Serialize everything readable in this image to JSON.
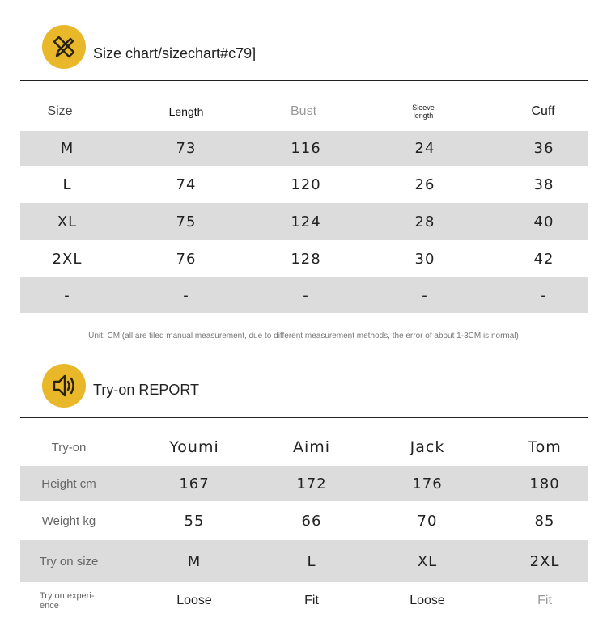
{
  "size_chart": {
    "icon": "pencil-ruler-icon",
    "title": "Size chart/sizechart#c79]",
    "headers": [
      "Size",
      "Length",
      "Bust",
      "Sleeve length",
      "Cuff"
    ],
    "rows": [
      [
        "M",
        "73",
        "116",
        "24",
        "36"
      ],
      [
        "L",
        "74",
        "120",
        "26",
        "38"
      ],
      [
        "XL",
        "75",
        "124",
        "28",
        "40"
      ],
      [
        "2XL",
        "76",
        "128",
        "30",
        "42"
      ],
      [
        "-",
        "-",
        "-",
        "-",
        "-"
      ]
    ],
    "note": "Unit: CM (all are tiled manual measurement, due to different measurement methods, the error of about 1-3CM is normal)"
  },
  "tryon": {
    "icon": "speaker-icon",
    "title": "Try-on REPORT",
    "headers": [
      "Try-on",
      "Youmi",
      "Aimi",
      "Jack",
      "Tom"
    ],
    "rows": [
      [
        "Height cm",
        "167",
        "172",
        "176",
        "180"
      ],
      [
        "Weight kg",
        "55",
        "66",
        "70",
        "85"
      ],
      [
        "Try on size",
        "M",
        "L",
        "XL",
        "2XL"
      ],
      [
        "Try on experi-ence",
        "Loose",
        "Fit",
        "Loose",
        "Fit"
      ]
    ]
  },
  "colors": {
    "accent": "#e8b82a",
    "row_gray": "#dcdcdc"
  }
}
